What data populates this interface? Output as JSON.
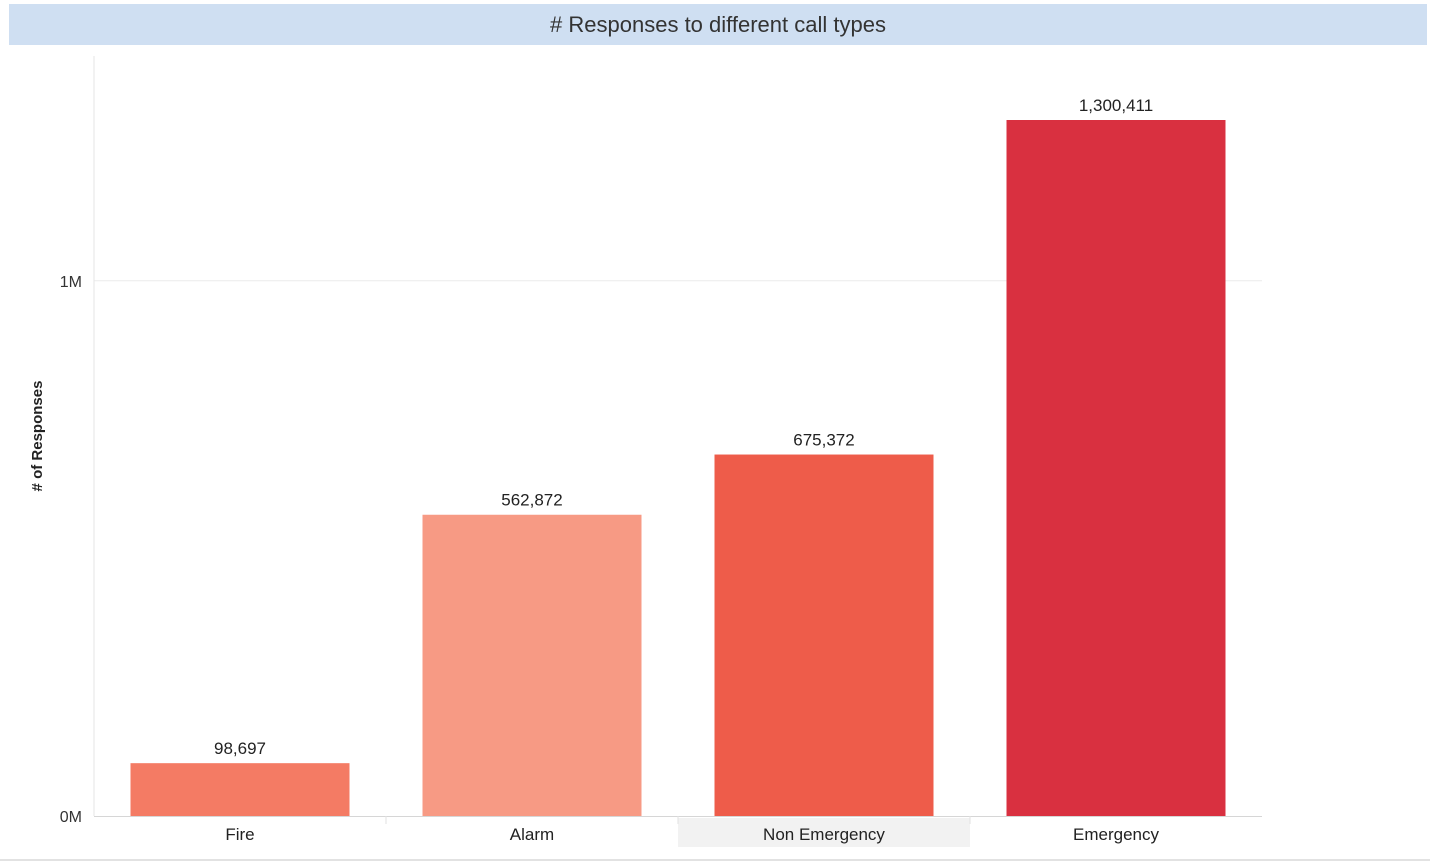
{
  "chart_data": {
    "type": "bar",
    "title": "# Responses to different call types",
    "xlabel": "",
    "ylabel": "# of Responses",
    "categories": [
      "Fire",
      "Alarm",
      "Non Emergency",
      "Emergency"
    ],
    "values": [
      98697,
      562872,
      675372,
      1300411
    ],
    "data_labels": [
      "98,697",
      "562,872",
      "675,372",
      "1,300,411"
    ],
    "colors": [
      "#f47b64",
      "#f79a84",
      "#ee5c4a",
      "#d93040"
    ],
    "highlighted_category": "Non Emergency",
    "y_ticks": [
      {
        "value": 0,
        "label": "0M"
      },
      {
        "value": 1000000,
        "label": "1M"
      }
    ],
    "ylim": [
      0,
      1420000
    ],
    "grid": true
  }
}
